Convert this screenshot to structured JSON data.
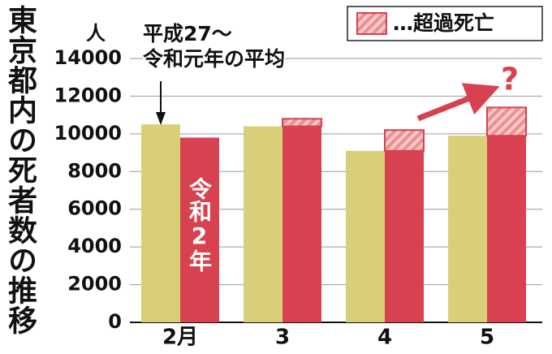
{
  "chart_data": {
    "type": "bar",
    "title": "東京都内の死者数の推移",
    "unit": "人",
    "annotation": "?",
    "categories": [
      "2月",
      "3",
      "4",
      "5"
    ],
    "series": [
      {
        "name": "平成27～\n令和元年の平均",
        "color": "#d9cf78",
        "values": [
          10500,
          10400,
          9100,
          9900
        ]
      },
      {
        "name": "令和2年",
        "color": "#d8414f",
        "values": [
          9800,
          10400,
          9100,
          9900
        ]
      },
      {
        "name": "…超過死亡",
        "color": "#f7c9c9",
        "values": [
          null,
          400,
          1100,
          1500
        ],
        "stacked_on": 1
      }
    ],
    "ylim": [
      0,
      14000
    ],
    "yticks": [
      0,
      2000,
      4000,
      6000,
      8000,
      10000,
      12000,
      14000
    ],
    "grid": true
  }
}
